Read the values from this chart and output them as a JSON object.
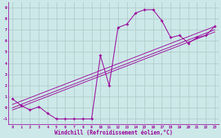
{
  "xlabel": "Windchill (Refroidissement éolien,°C)",
  "background_color": "#cce8e8",
  "grid_color": "#b0c8c8",
  "line_color": "#990099",
  "xlim": [
    -0.5,
    23.5
  ],
  "ylim": [
    -1.5,
    9.5
  ],
  "xticks": [
    0,
    1,
    2,
    3,
    4,
    5,
    6,
    7,
    8,
    9,
    10,
    11,
    12,
    13,
    14,
    15,
    16,
    17,
    18,
    19,
    20,
    21,
    22,
    23
  ],
  "yticks": [
    -1,
    0,
    1,
    2,
    3,
    4,
    5,
    6,
    7,
    8,
    9
  ],
  "main_x": [
    0,
    1,
    2,
    3,
    4,
    5,
    6,
    7,
    8,
    9,
    10,
    11,
    12,
    13,
    14,
    15,
    16,
    17,
    18,
    19,
    20,
    21,
    22,
    23
  ],
  "main_y": [
    0.8,
    0.2,
    -0.2,
    0.1,
    -0.5,
    -1.0,
    -1.0,
    -1.0,
    -1.0,
    -1.0,
    4.7,
    2.0,
    7.2,
    7.5,
    8.5,
    8.8,
    8.8,
    7.8,
    6.3,
    6.5,
    5.8,
    6.3,
    6.5,
    7.3
  ],
  "ref_lines": [
    {
      "x": [
        0,
        23
      ],
      "y": [
        -0.2,
        6.8
      ]
    },
    {
      "x": [
        0,
        23
      ],
      "y": [
        0.0,
        7.0
      ]
    },
    {
      "x": [
        0,
        23
      ],
      "y": [
        0.3,
        7.3
      ]
    }
  ]
}
